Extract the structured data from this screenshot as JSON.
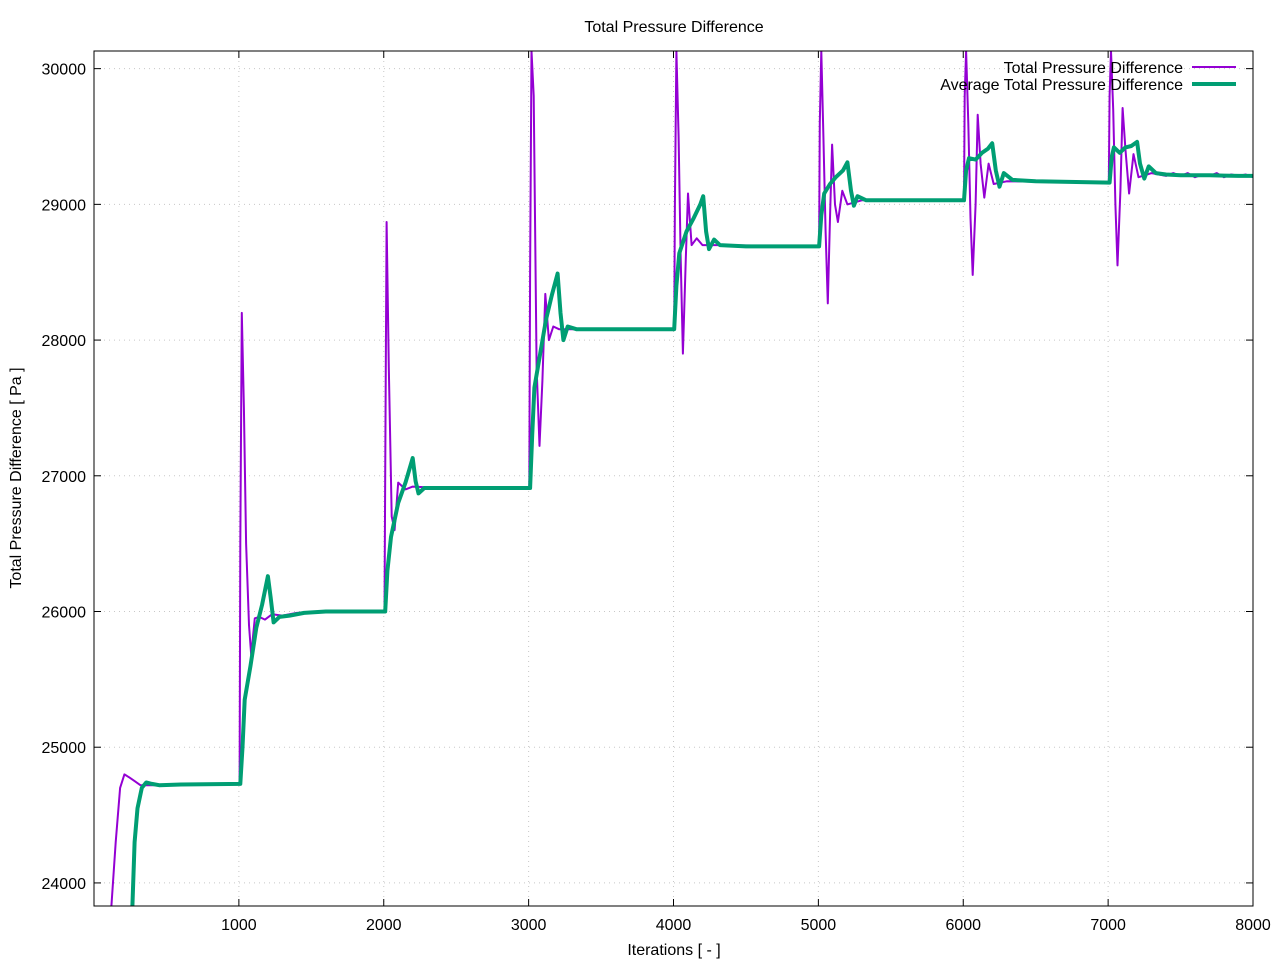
{
  "chart_data": {
    "type": "line",
    "title": "Total Pressure Difference",
    "xlabel": "Iterations [ - ]",
    "ylabel": "Total Pressure Difference [ Pa ]",
    "xlim": [
      0,
      8000
    ],
    "ylim": [
      23830,
      30130
    ],
    "xticks": [
      1000,
      2000,
      3000,
      4000,
      5000,
      6000,
      7000,
      8000
    ],
    "yticks": [
      24000,
      25000,
      26000,
      27000,
      28000,
      29000,
      30000
    ],
    "grid": true,
    "legend_position": "top-right",
    "series": [
      {
        "name": "Total Pressure Difference",
        "color": "#9400d3",
        "line_width": 2,
        "points": [
          [
            120,
            23830
          ],
          [
            150,
            24300
          ],
          [
            180,
            24700
          ],
          [
            210,
            24800
          ],
          [
            240,
            24780
          ],
          [
            280,
            24750
          ],
          [
            320,
            24720
          ],
          [
            400,
            24720
          ],
          [
            600,
            24730
          ],
          [
            1005,
            24730
          ],
          [
            1010,
            26500
          ],
          [
            1020,
            28200
          ],
          [
            1035,
            27500
          ],
          [
            1050,
            26500
          ],
          [
            1070,
            25900
          ],
          [
            1085,
            25680
          ],
          [
            1110,
            25950
          ],
          [
            1140,
            25960
          ],
          [
            1180,
            25940
          ],
          [
            1230,
            25980
          ],
          [
            1300,
            25970
          ],
          [
            1400,
            25990
          ],
          [
            1600,
            26000
          ],
          [
            2005,
            26000
          ],
          [
            2010,
            27000
          ],
          [
            2020,
            28870
          ],
          [
            2035,
            27800
          ],
          [
            2055,
            26700
          ],
          [
            2075,
            26600
          ],
          [
            2100,
            26950
          ],
          [
            2150,
            26900
          ],
          [
            2200,
            26920
          ],
          [
            2400,
            26910
          ],
          [
            3005,
            26910
          ],
          [
            3010,
            28500
          ],
          [
            3020,
            30130
          ],
          [
            3035,
            29800
          ],
          [
            3055,
            27800
          ],
          [
            3075,
            27220
          ],
          [
            3095,
            27700
          ],
          [
            3115,
            28340
          ],
          [
            3140,
            28000
          ],
          [
            3170,
            28100
          ],
          [
            3210,
            28080
          ],
          [
            3300,
            28080
          ],
          [
            4005,
            28080
          ],
          [
            4010,
            29000
          ],
          [
            4020,
            30130
          ],
          [
            4035,
            29500
          ],
          [
            4050,
            28600
          ],
          [
            4065,
            27900
          ],
          [
            4085,
            28600
          ],
          [
            4100,
            29080
          ],
          [
            4125,
            28700
          ],
          [
            4160,
            28750
          ],
          [
            4200,
            28700
          ],
          [
            4300,
            28700
          ],
          [
            5005,
            28690
          ],
          [
            5010,
            29600
          ],
          [
            5020,
            30130
          ],
          [
            5035,
            29500
          ],
          [
            5050,
            28800
          ],
          [
            5065,
            28270
          ],
          [
            5080,
            28900
          ],
          [
            5095,
            29440
          ],
          [
            5115,
            29000
          ],
          [
            5135,
            28870
          ],
          [
            5165,
            29100
          ],
          [
            5200,
            29000
          ],
          [
            5300,
            29030
          ],
          [
            6005,
            29030
          ],
          [
            6010,
            29800
          ],
          [
            6020,
            30130
          ],
          [
            6035,
            29600
          ],
          [
            6050,
            28900
          ],
          [
            6065,
            28480
          ],
          [
            6085,
            29000
          ],
          [
            6100,
            29660
          ],
          [
            6120,
            29300
          ],
          [
            6145,
            29050
          ],
          [
            6175,
            29300
          ],
          [
            6210,
            29150
          ],
          [
            6300,
            29170
          ],
          [
            7005,
            29160
          ],
          [
            7010,
            29800
          ],
          [
            7020,
            30130
          ],
          [
            7035,
            29700
          ],
          [
            7050,
            29000
          ],
          [
            7065,
            28550
          ],
          [
            7085,
            29100
          ],
          [
            7100,
            29710
          ],
          [
            7120,
            29400
          ],
          [
            7145,
            29080
          ],
          [
            7175,
            29370
          ],
          [
            7210,
            29200
          ],
          [
            7300,
            29230
          ],
          [
            7400,
            29210
          ],
          [
            7450,
            29230
          ],
          [
            7500,
            29210
          ],
          [
            7550,
            29230
          ],
          [
            7600,
            29200
          ],
          [
            7650,
            29220
          ],
          [
            7700,
            29210
          ],
          [
            7750,
            29230
          ],
          [
            7800,
            29200
          ],
          [
            7850,
            29220
          ],
          [
            7900,
            29210
          ],
          [
            7950,
            29220
          ],
          [
            8000,
            29200
          ]
        ]
      },
      {
        "name": "Average Total Pressure Difference",
        "color": "#009e73",
        "line_width": 4,
        "points": [
          [
            265,
            23830
          ],
          [
            280,
            24300
          ],
          [
            300,
            24550
          ],
          [
            330,
            24700
          ],
          [
            360,
            24740
          ],
          [
            400,
            24730
          ],
          [
            450,
            24720
          ],
          [
            600,
            24725
          ],
          [
            1010,
            24730
          ],
          [
            1025,
            25000
          ],
          [
            1040,
            25350
          ],
          [
            1080,
            25600
          ],
          [
            1120,
            25880
          ],
          [
            1160,
            26050
          ],
          [
            1200,
            26260
          ],
          [
            1220,
            26100
          ],
          [
            1240,
            25920
          ],
          [
            1280,
            25960
          ],
          [
            1350,
            25970
          ],
          [
            1450,
            25990
          ],
          [
            1600,
            26000
          ],
          [
            2010,
            26000
          ],
          [
            2025,
            26300
          ],
          [
            2050,
            26550
          ],
          [
            2100,
            26800
          ],
          [
            2150,
            26950
          ],
          [
            2200,
            27130
          ],
          [
            2220,
            26960
          ],
          [
            2240,
            26870
          ],
          [
            2280,
            26910
          ],
          [
            2400,
            26910
          ],
          [
            3010,
            26910
          ],
          [
            3025,
            27300
          ],
          [
            3040,
            27650
          ],
          [
            3080,
            27900
          ],
          [
            3120,
            28150
          ],
          [
            3160,
            28330
          ],
          [
            3200,
            28490
          ],
          [
            3220,
            28200
          ],
          [
            3240,
            28000
          ],
          [
            3270,
            28100
          ],
          [
            3330,
            28080
          ],
          [
            4005,
            28080
          ],
          [
            4020,
            28400
          ],
          [
            4040,
            28640
          ],
          [
            4090,
            28800
          ],
          [
            4140,
            28900
          ],
          [
            4185,
            29000
          ],
          [
            4205,
            29060
          ],
          [
            4225,
            28800
          ],
          [
            4245,
            28670
          ],
          [
            4280,
            28740
          ],
          [
            4320,
            28700
          ],
          [
            4500,
            28690
          ],
          [
            5005,
            28690
          ],
          [
            5020,
            28920
          ],
          [
            5040,
            29080
          ],
          [
            5080,
            29150
          ],
          [
            5120,
            29200
          ],
          [
            5170,
            29250
          ],
          [
            5200,
            29310
          ],
          [
            5225,
            29100
          ],
          [
            5245,
            28990
          ],
          [
            5270,
            29060
          ],
          [
            5330,
            29030
          ],
          [
            6005,
            29030
          ],
          [
            6020,
            29250
          ],
          [
            6040,
            29340
          ],
          [
            6085,
            29330
          ],
          [
            6130,
            29380
          ],
          [
            6170,
            29410
          ],
          [
            6200,
            29450
          ],
          [
            6225,
            29250
          ],
          [
            6250,
            29130
          ],
          [
            6280,
            29230
          ],
          [
            6340,
            29180
          ],
          [
            6500,
            29170
          ],
          [
            7010,
            29160
          ],
          [
            7025,
            29350
          ],
          [
            7040,
            29420
          ],
          [
            7080,
            29380
          ],
          [
            7120,
            29420
          ],
          [
            7160,
            29430
          ],
          [
            7200,
            29460
          ],
          [
            7220,
            29300
          ],
          [
            7250,
            29190
          ],
          [
            7280,
            29280
          ],
          [
            7330,
            29230
          ],
          [
            7400,
            29220
          ],
          [
            7500,
            29215
          ],
          [
            7600,
            29215
          ],
          [
            7700,
            29215
          ],
          [
            7800,
            29212
          ],
          [
            7900,
            29210
          ],
          [
            8000,
            29210
          ]
        ]
      }
    ]
  }
}
